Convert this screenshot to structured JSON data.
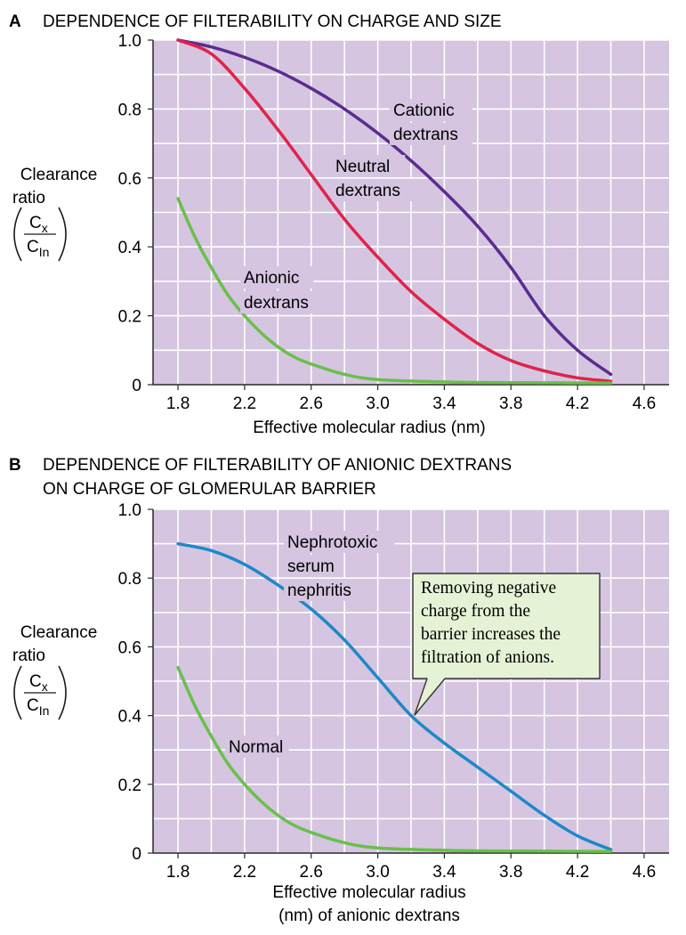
{
  "colors": {
    "plot_background": "#d5c5e0",
    "grid": "#ffffff",
    "cationic": "#5b2c8f",
    "neutral": "#e0234a",
    "anionic": "#6abf4b",
    "nephritis": "#1e88c8",
    "callout_fill": "#e6f2d6"
  },
  "chart_data": [
    {
      "type": "line",
      "panel_letter": "A",
      "title_lines": [
        "DEPENDENCE OF FILTERABILITY ON CHARGE AND SIZE"
      ],
      "xlabel_lines": [
        "Effective molecular radius (nm)"
      ],
      "ylabel": {
        "line1": "Clearance",
        "line2": "ratio",
        "numerator": "C",
        "numerator_sub": "x",
        "denominator": "C",
        "denominator_sub": "In"
      },
      "xlim": [
        1.65,
        4.75
      ],
      "ylim": [
        0,
        1.0
      ],
      "x_ticks": [
        "1.8",
        "2.2",
        "2.6",
        "3.0",
        "3.4",
        "3.8",
        "4.2",
        "4.6"
      ],
      "y_ticks": [
        "0",
        "0.2",
        "0.4",
        "0.6",
        "0.8",
        "1.0"
      ],
      "grid": true,
      "series": [
        {
          "name": "Cationic dextrans",
          "label_lines": [
            "Cationic",
            "dextrans"
          ],
          "color": "cationic",
          "x": [
            1.8,
            2.0,
            2.2,
            2.4,
            2.6,
            2.8,
            3.0,
            3.2,
            3.4,
            3.6,
            3.8,
            4.0,
            4.2,
            4.4
          ],
          "y": [
            1.0,
            0.98,
            0.95,
            0.91,
            0.86,
            0.8,
            0.73,
            0.65,
            0.56,
            0.46,
            0.34,
            0.2,
            0.1,
            0.03
          ]
        },
        {
          "name": "Neutral dextrans",
          "label_lines": [
            "Neutral",
            "dextrans"
          ],
          "color": "neutral",
          "x": [
            1.8,
            2.0,
            2.2,
            2.4,
            2.6,
            2.8,
            3.0,
            3.2,
            3.4,
            3.6,
            3.8,
            4.0,
            4.2,
            4.4
          ],
          "y": [
            1.0,
            0.96,
            0.86,
            0.74,
            0.61,
            0.48,
            0.37,
            0.27,
            0.19,
            0.12,
            0.07,
            0.04,
            0.02,
            0.01
          ]
        },
        {
          "name": "Anionic dextrans",
          "label_lines": [
            "Anionic",
            "dextrans"
          ],
          "color": "anionic",
          "x": [
            1.8,
            1.9,
            2.0,
            2.1,
            2.2,
            2.3,
            2.4,
            2.5,
            2.6,
            2.8,
            3.0,
            3.4,
            3.8,
            4.4
          ],
          "y": [
            0.54,
            0.43,
            0.34,
            0.26,
            0.2,
            0.15,
            0.11,
            0.08,
            0.06,
            0.03,
            0.015,
            0.008,
            0.006,
            0.005
          ]
        }
      ]
    },
    {
      "type": "line",
      "panel_letter": "B",
      "title_lines": [
        "DEPENDENCE OF FILTERABILITY OF ANIONIC DEXTRANS",
        "ON CHARGE OF GLOMERULAR BARRIER"
      ],
      "xlabel_lines": [
        "Effective molecular radius",
        "(nm) of anionic dextrans"
      ],
      "ylabel": {
        "line1": "Clearance",
        "line2": "ratio",
        "numerator": "C",
        "numerator_sub": "x",
        "denominator": "C",
        "denominator_sub": "In"
      },
      "xlim": [
        1.65,
        4.75
      ],
      "ylim": [
        0,
        1.0
      ],
      "x_ticks": [
        "1.8",
        "2.2",
        "2.6",
        "3.0",
        "3.4",
        "3.8",
        "4.2",
        "4.6"
      ],
      "y_ticks": [
        "0",
        "0.2",
        "0.4",
        "0.6",
        "0.8",
        "1.0"
      ],
      "grid": true,
      "series": [
        {
          "name": "Nephrotoxic serum nephritis",
          "label_lines": [
            "Nephrotoxic",
            "serum",
            "nephritis"
          ],
          "color": "nephritis",
          "x": [
            1.8,
            2.0,
            2.2,
            2.4,
            2.6,
            2.8,
            3.0,
            3.2,
            3.4,
            3.6,
            3.8,
            4.0,
            4.2,
            4.4
          ],
          "y": [
            0.9,
            0.88,
            0.84,
            0.78,
            0.71,
            0.62,
            0.51,
            0.4,
            0.32,
            0.25,
            0.18,
            0.11,
            0.05,
            0.01
          ]
        },
        {
          "name": "Normal",
          "label_lines": [
            "Normal"
          ],
          "color": "anionic",
          "x": [
            1.8,
            1.9,
            2.0,
            2.1,
            2.2,
            2.3,
            2.4,
            2.5,
            2.6,
            2.8,
            3.0,
            3.4,
            3.8,
            4.4
          ],
          "y": [
            0.54,
            0.43,
            0.34,
            0.26,
            0.2,
            0.15,
            0.11,
            0.08,
            0.06,
            0.03,
            0.015,
            0.008,
            0.006,
            0.005
          ]
        }
      ],
      "annotation": {
        "lines": [
          "Removing negative",
          "charge from the",
          "barrier increases the",
          "filtration  of anions."
        ],
        "points_to": {
          "x": 3.2,
          "y": 0.4
        }
      }
    }
  ]
}
